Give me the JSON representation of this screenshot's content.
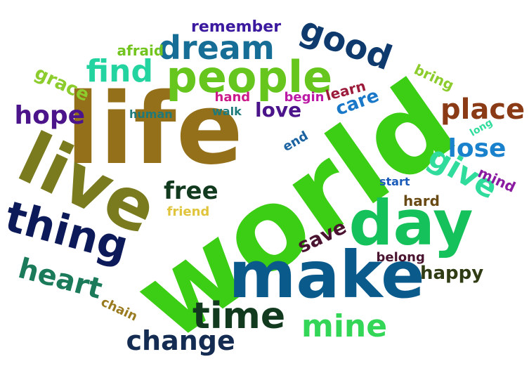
{
  "words": [
    {
      "text": "world",
      "color": "#3cce14"
    },
    {
      "text": "life",
      "color": "#94701a"
    },
    {
      "text": "make",
      "color": "#0a5a8c"
    },
    {
      "text": "live",
      "color": "#7a7a1e"
    },
    {
      "text": "people",
      "color": "#66c61e"
    },
    {
      "text": "day",
      "color": "#14c15a"
    },
    {
      "text": "dream",
      "color": "#166e96"
    },
    {
      "text": "thing",
      "color": "#0d1a5a"
    },
    {
      "text": "good",
      "color": "#0e3a6e"
    },
    {
      "text": "find",
      "color": "#24d4a0"
    },
    {
      "text": "time",
      "color": "#123a1e"
    },
    {
      "text": "mine",
      "color": "#34d658"
    },
    {
      "text": "change",
      "color": "#142c52"
    },
    {
      "text": "heart",
      "color": "#1a7a5a"
    },
    {
      "text": "place",
      "color": "#8a3a14"
    },
    {
      "text": "give",
      "color": "#30dc9c"
    },
    {
      "text": "hope",
      "color": "#4c148a"
    },
    {
      "text": "free",
      "color": "#123a1e"
    },
    {
      "text": "lose",
      "color": "#1a82cc"
    },
    {
      "text": "love",
      "color": "#4c148a"
    },
    {
      "text": "save",
      "color": "#4a1430"
    },
    {
      "text": "happy",
      "color": "#303c14"
    },
    {
      "text": "grace",
      "color": "#8ccc2c"
    },
    {
      "text": "care",
      "color": "#1a78c8"
    },
    {
      "text": "remember",
      "color": "#3c1aa0"
    },
    {
      "text": "afraid",
      "color": "#72c41e"
    },
    {
      "text": "hand",
      "color": "#cc1a8a"
    },
    {
      "text": "begin",
      "color": "#bc1aa4"
    },
    {
      "text": "learn",
      "color": "#9c1a3a"
    },
    {
      "text": "human",
      "color": "#1e7a7a"
    },
    {
      "text": "walk",
      "color": "#1e7a7a"
    },
    {
      "text": "end",
      "color": "#1a62a0"
    },
    {
      "text": "mind",
      "color": "#8a1aa0"
    },
    {
      "text": "long",
      "color": "#30dc9c"
    },
    {
      "text": "bring",
      "color": "#8ccc2c"
    },
    {
      "text": "start",
      "color": "#1a5ab8"
    },
    {
      "text": "hard",
      "color": "#6a4a14"
    },
    {
      "text": "friend",
      "color": "#e0c43c"
    },
    {
      "text": "belong",
      "color": "#4a1430"
    },
    {
      "text": "chain",
      "color": "#9a7a1e"
    }
  ]
}
